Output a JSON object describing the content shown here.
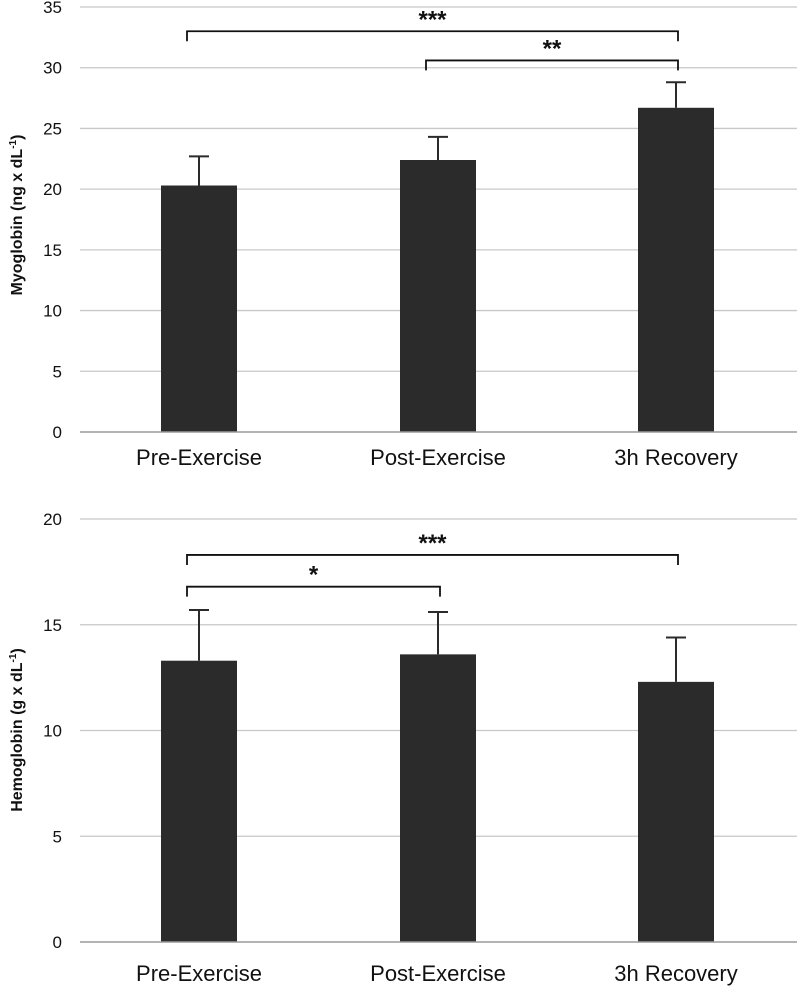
{
  "chart_data": [
    {
      "type": "bar",
      "categories": [
        "Pre-Exercise",
        "Post-Exercise",
        "3h Recovery"
      ],
      "values": [
        20.3,
        22.4,
        26.7
      ],
      "errors": [
        2.4,
        1.9,
        2.1
      ],
      "ylabel": "Myoglobin (ng x dL",
      "ylabel_sup": "-1",
      "ylabel_close": ")",
      "ylim": [
        0,
        35
      ],
      "yticks": [
        0,
        5,
        10,
        15,
        20,
        25,
        30,
        35
      ],
      "grid": true,
      "significance": [
        {
          "from": 0,
          "to": 2,
          "label": "***",
          "y": 33
        },
        {
          "from": 1,
          "to": 2,
          "label": "**",
          "y": 30.6
        }
      ]
    },
    {
      "type": "bar",
      "categories": [
        "Pre-Exercise",
        "Post-Exercise",
        "3h Recovery"
      ],
      "values": [
        13.3,
        13.6,
        12.3
      ],
      "errors": [
        2.4,
        2.0,
        2.1
      ],
      "ylabel": "Hemoglobin (g x dL",
      "ylabel_sup": "-1",
      "ylabel_close": ")",
      "ylim": [
        0,
        20
      ],
      "yticks": [
        0,
        5,
        10,
        15,
        20
      ],
      "grid": true,
      "significance": [
        {
          "from": 0,
          "to": 2,
          "label": "***",
          "y": 18.3
        },
        {
          "from": 0,
          "to": 1,
          "label": "*",
          "y": 16.8
        }
      ]
    }
  ]
}
